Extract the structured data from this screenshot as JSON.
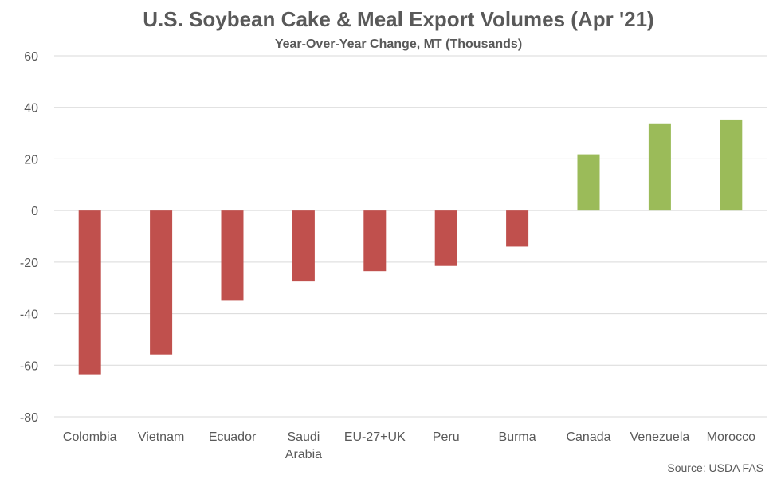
{
  "chart_data": {
    "type": "bar",
    "title": "U.S. Soybean Cake & Meal Export Volumes (Apr '21)",
    "subtitle": "Year-Over-Year Change, MT (Thousands)",
    "xlabel": "",
    "ylabel": "",
    "ylim": [
      -80,
      60
    ],
    "yticks": [
      60,
      40,
      20,
      0,
      -20,
      -40,
      -60,
      -80
    ],
    "grid": true,
    "categories": [
      "Colombia",
      "Vietnam",
      "Ecuador",
      "Saudi Arabia",
      "EU-27+UK",
      "Peru",
      "Burma",
      "Canada",
      "Venezuela",
      "Morocco"
    ],
    "category_lines": [
      [
        "Colombia"
      ],
      [
        "Vietnam"
      ],
      [
        "Ecuador"
      ],
      [
        "Saudi",
        "Arabia"
      ],
      [
        "EU-27+UK"
      ],
      [
        "Peru"
      ],
      [
        "Burma"
      ],
      [
        "Canada"
      ],
      [
        "Venezuela"
      ],
      [
        "Morocco"
      ]
    ],
    "values": [
      -63.5,
      -55.8,
      -35,
      -27.5,
      -23.5,
      -21.5,
      -14,
      21.8,
      33.8,
      35.3
    ],
    "colors": {
      "negative": "#c0504d",
      "positive": "#9bbb59"
    },
    "source": "Source: USDA FAS"
  }
}
